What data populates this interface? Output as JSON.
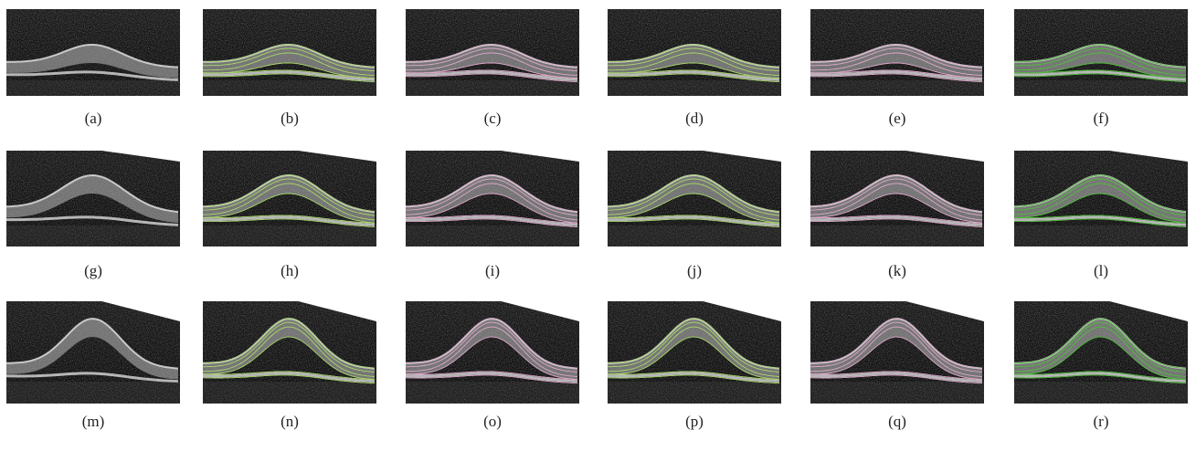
{
  "panels": [
    {
      "label": "(a)"
    },
    {
      "label": "(b)"
    },
    {
      "label": "(c)"
    },
    {
      "label": "(d)"
    },
    {
      "label": "(e)"
    },
    {
      "label": "(f)"
    },
    {
      "label": "(g)"
    },
    {
      "label": "(h)"
    },
    {
      "label": "(i)"
    },
    {
      "label": "(j)"
    },
    {
      "label": "(k)"
    },
    {
      "label": "(l)"
    },
    {
      "label": "(m)"
    },
    {
      "label": "(n)"
    },
    {
      "label": "(o)"
    },
    {
      "label": "(p)"
    },
    {
      "label": "(q)"
    },
    {
      "label": "(r)"
    }
  ]
}
